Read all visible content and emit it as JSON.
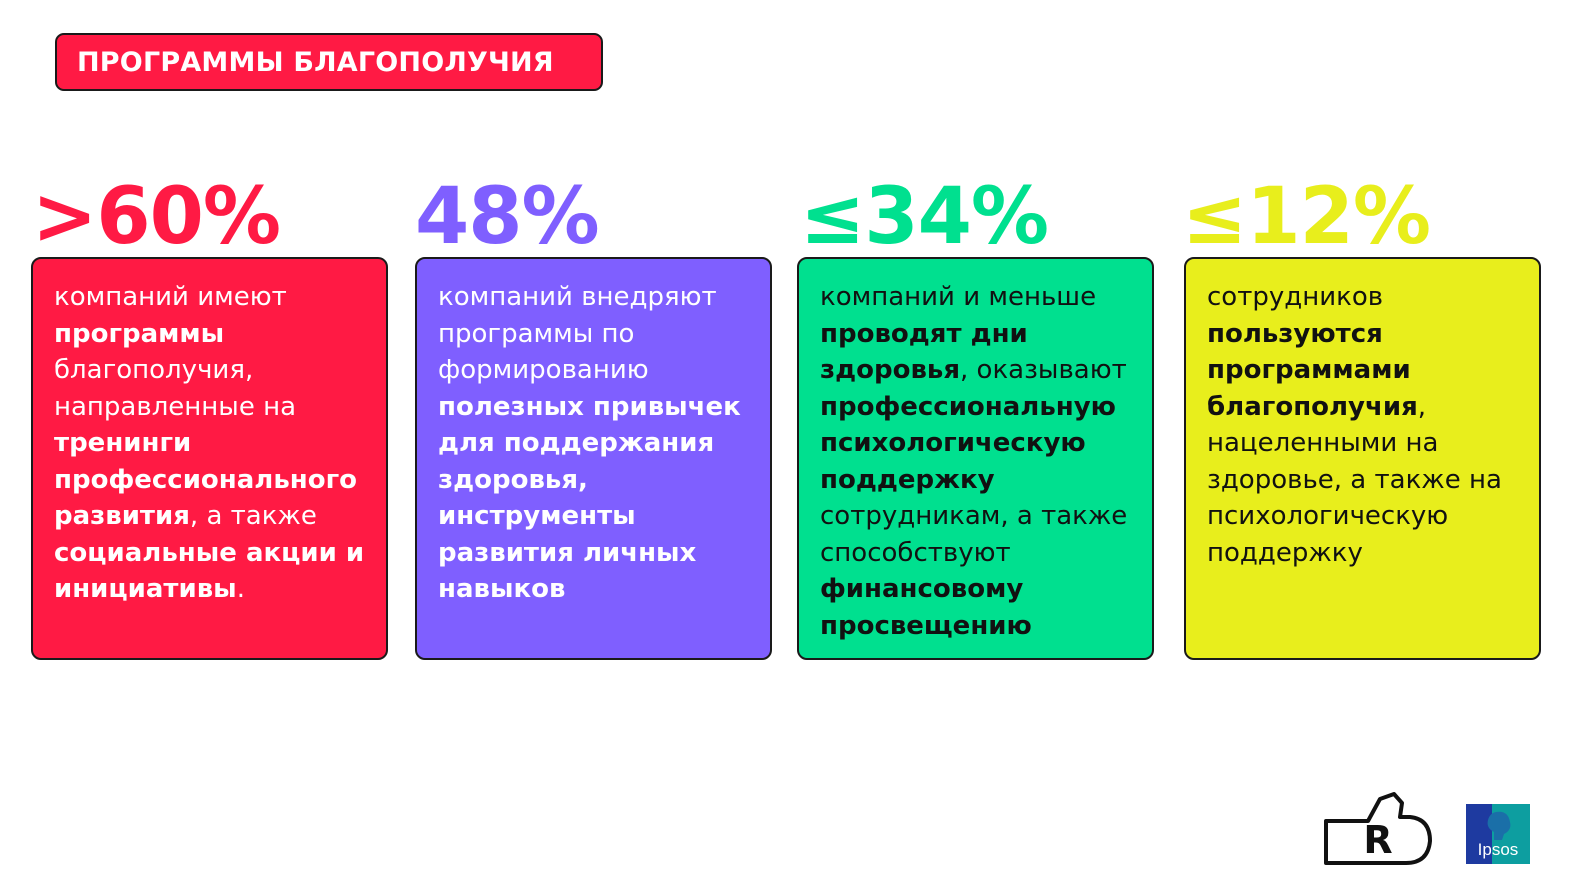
{
  "title": "ПРОГРАММЫ БЛАГОПОЛУЧИЯ",
  "colors": {
    "red": "#ff1a44",
    "purple": "#7f5fff",
    "green": "#00e08f",
    "yellow": "#e8ee1c",
    "text_light": "#ffffff",
    "text_dark": "#111111"
  },
  "cards": [
    {
      "stat": ">60%",
      "lines": [
        [
          {
            "t": "компаний имеют",
            "b": false
          }
        ],
        [
          {
            "t": "программы",
            "b": true
          }
        ],
        [
          {
            "t": "благополучия,",
            "b": false
          }
        ],
        [
          {
            "t": "направленные на",
            "b": false
          }
        ],
        [
          {
            "t": "тренинги",
            "b": true
          }
        ],
        [
          {
            "t": "профессионального",
            "b": true
          }
        ],
        [
          {
            "t": "развития",
            "b": true
          },
          {
            "t": ", а также",
            "b": false
          }
        ],
        [
          {
            "t": "социальные акции и",
            "b": true
          }
        ],
        [
          {
            "t": "инициативы",
            "b": true
          },
          {
            "t": ".",
            "b": false
          }
        ]
      ]
    },
    {
      "stat": "48%",
      "lines": [
        [
          {
            "t": "компаний внедряют",
            "b": false
          }
        ],
        [
          {
            "t": "программы по",
            "b": false
          }
        ],
        [
          {
            "t": "формированию",
            "b": false
          }
        ],
        [
          {
            "t": "полезных привычек",
            "b": true
          }
        ],
        [
          {
            "t": "для поддержания",
            "b": true
          }
        ],
        [
          {
            "t": "здоровья,",
            "b": true
          }
        ],
        [
          {
            "t": "инструменты",
            "b": true
          }
        ],
        [
          {
            "t": "развития личных",
            "b": true
          }
        ],
        [
          {
            "t": "навыков",
            "b": true
          }
        ]
      ]
    },
    {
      "stat": "≤34%",
      "lines": [
        [
          {
            "t": "компаний и меньше",
            "b": false
          }
        ],
        [
          {
            "t": "проводят дни",
            "b": true
          }
        ],
        [
          {
            "t": "здоровья",
            "b": true
          },
          {
            "t": ", оказывают",
            "b": false
          }
        ],
        [
          {
            "t": "профессиональную",
            "b": true
          }
        ],
        [
          {
            "t": "психологическую",
            "b": true
          }
        ],
        [
          {
            "t": "поддержку",
            "b": true
          }
        ],
        [
          {
            "t": "сотрудникам, а также",
            "b": false
          }
        ],
        [
          {
            "t": "способствуют",
            "b": false
          }
        ],
        [
          {
            "t": "финансовому",
            "b": true
          }
        ],
        [
          {
            "t": "просвещению",
            "b": true
          }
        ]
      ]
    },
    {
      "stat": "≤12%",
      "lines": [
        [
          {
            "t": "сотрудников",
            "b": false
          }
        ],
        [
          {
            "t": "пользуются",
            "b": true
          }
        ],
        [
          {
            "t": "программами",
            "b": true
          }
        ],
        [
          {
            "t": "благополучия",
            "b": true
          },
          {
            "t": ",",
            "b": false
          }
        ],
        [
          {
            "t": "нацеленными на",
            "b": false
          }
        ],
        [
          {
            "t": "здоровье, а также на",
            "b": false
          }
        ],
        [
          {
            "t": "психологическую",
            "b": false
          }
        ],
        [
          {
            "t": "поддержку",
            "b": false
          }
        ]
      ]
    }
  ],
  "logos": {
    "left": "R",
    "right": "Ipsos"
  },
  "icons": {
    "left_logo": "hand-r-logo-icon",
    "right_logo": "ipsos-logo-icon"
  }
}
